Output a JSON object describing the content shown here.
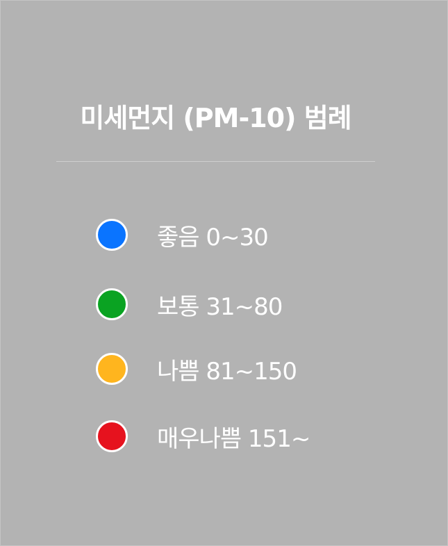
{
  "legend": {
    "title": "미세먼지 (PM-10) 범례",
    "items": [
      {
        "label": "좋음 0~30",
        "color": "#0a74ff"
      },
      {
        "label": "보통 31~80",
        "color": "#0aa322"
      },
      {
        "label": "나쁨 81~150",
        "color": "#ffb51e"
      },
      {
        "label": "매우나쁨 151~",
        "color": "#e6121e"
      }
    ]
  }
}
